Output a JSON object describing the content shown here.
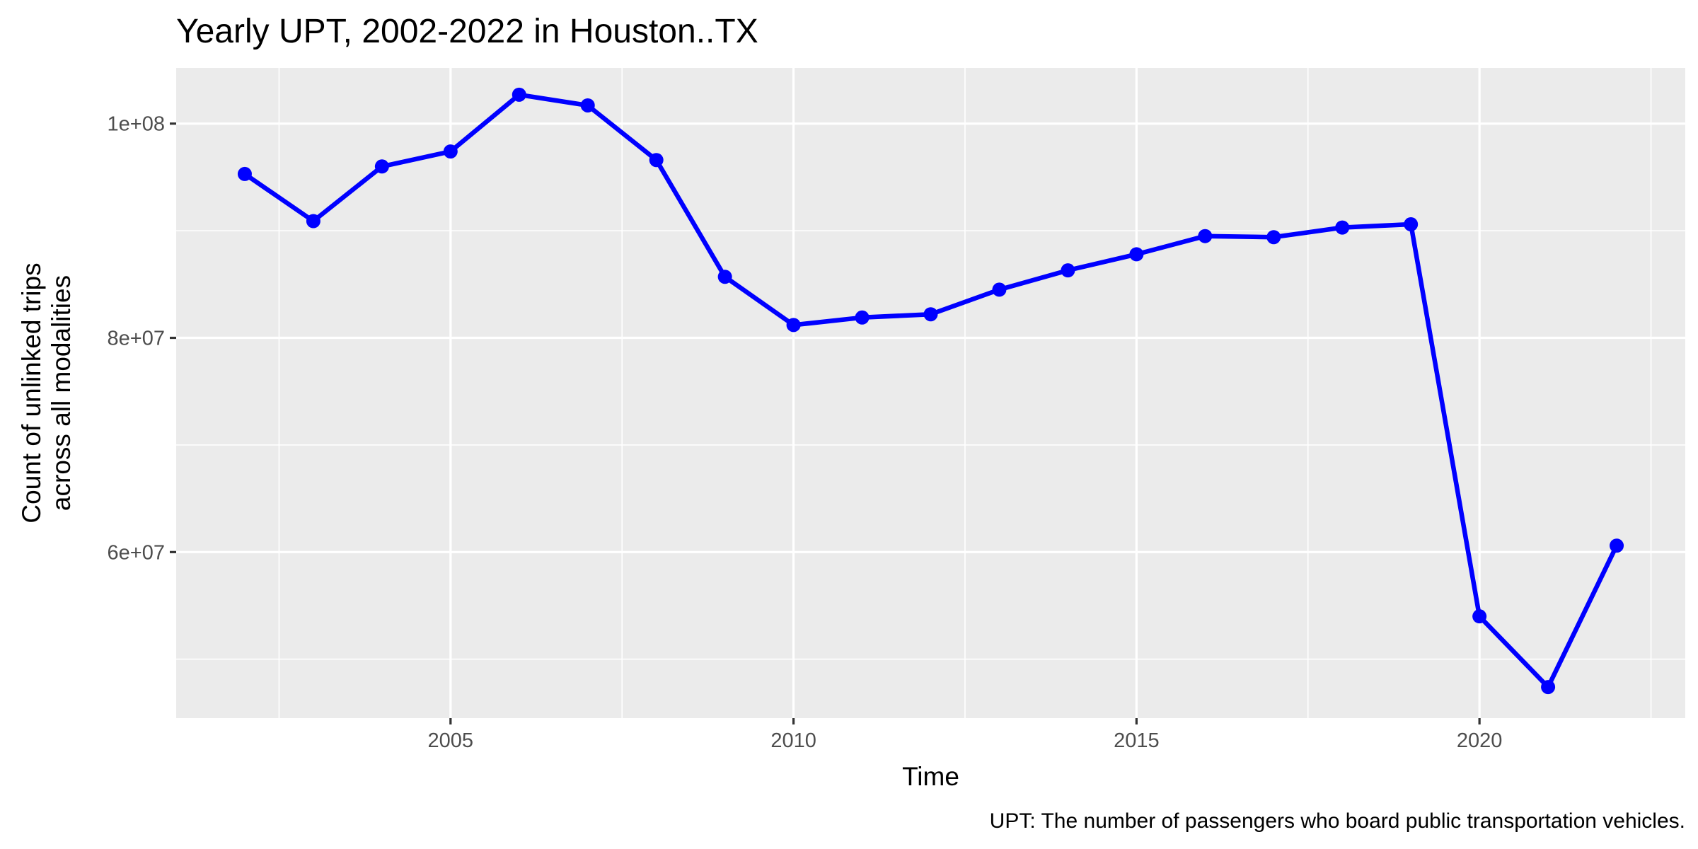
{
  "chart_data": {
    "type": "line",
    "title": "Yearly UPT, 2002-2022 in Houston..TX",
    "xlabel": "Time",
    "ylabel_lines": [
      "Count of unlinked trips",
      "across all modalities"
    ],
    "caption": "UPT: The number of passengers who board public transportation vehicles.",
    "xlim": [
      2001,
      2023
    ],
    "ylim": [
      44500000,
      105200000
    ],
    "x_ticks": [
      2005,
      2010,
      2015,
      2020
    ],
    "x_tick_labels": [
      "2005",
      "2010",
      "2015",
      "2020"
    ],
    "y_ticks": [
      60000000,
      80000000,
      100000000
    ],
    "y_tick_labels": [
      "6e+07",
      "8e+07",
      "1e+08"
    ],
    "grid": true,
    "series": [
      {
        "color": "#0000FF",
        "x": [
          2002,
          2003,
          2004,
          2005,
          2006,
          2007,
          2008,
          2009,
          2010,
          2011,
          2012,
          2013,
          2014,
          2015,
          2016,
          2017,
          2018,
          2019,
          2020,
          2021,
          2022
        ],
        "y": [
          95300000,
          90900000,
          96000000,
          97400000,
          102700000,
          101700000,
          96600000,
          85700000,
          81200000,
          81900000,
          82200000,
          84500000,
          86300000,
          87800000,
          89500000,
          89400000,
          90300000,
          90600000,
          54000000,
          47400000,
          60600000
        ]
      }
    ]
  }
}
